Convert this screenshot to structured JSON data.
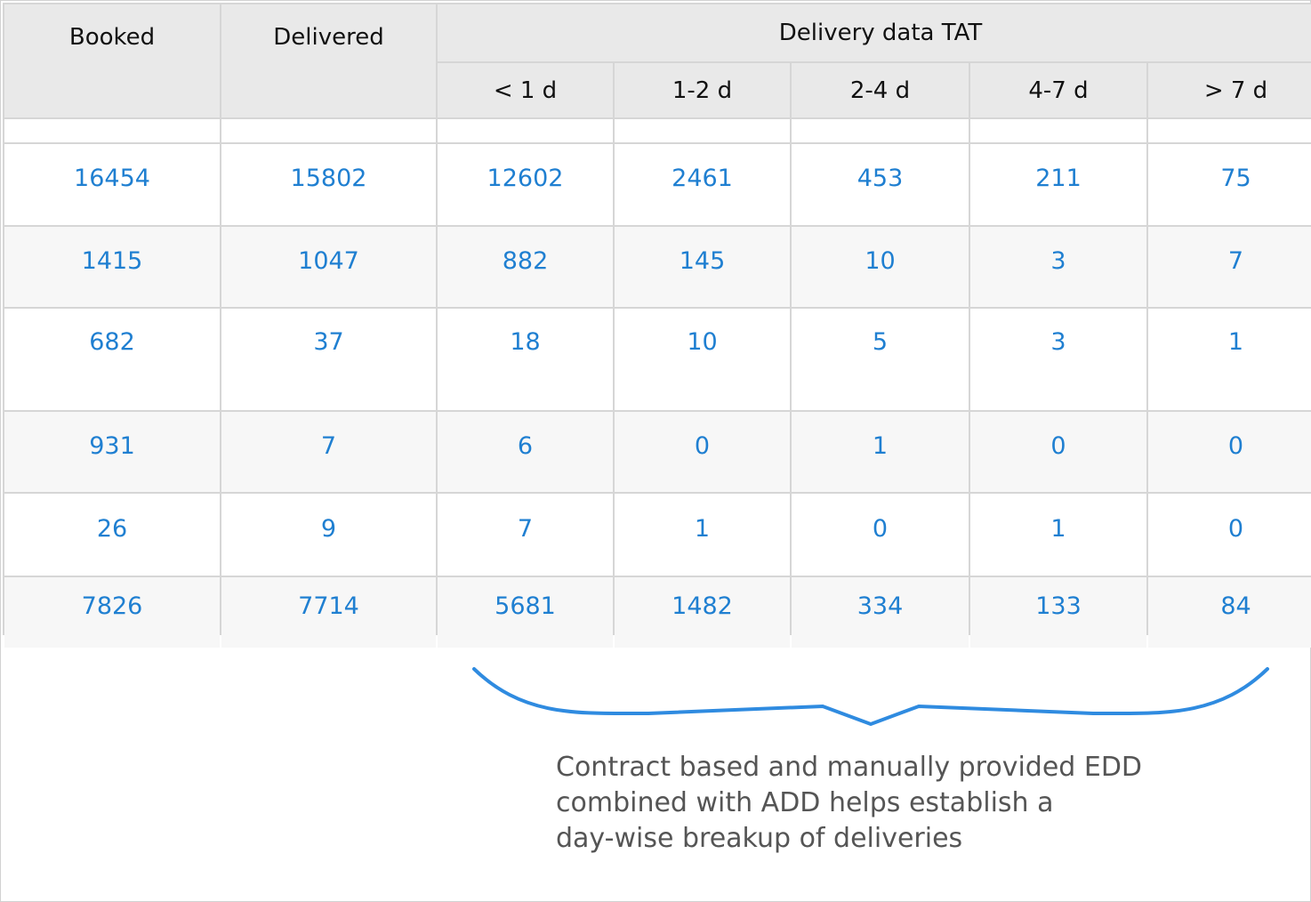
{
  "table": {
    "headers": {
      "booked": "Booked",
      "delivered": "Delivered",
      "group": "Delivery data TAT",
      "buckets": [
        "< 1 d",
        "1-2 d",
        "2-4 d",
        "4-7 d",
        "> 7 d"
      ]
    },
    "rows": [
      [
        "16454",
        "15802",
        "12602",
        "2461",
        "453",
        "211",
        "75"
      ],
      [
        "1415",
        "1047",
        "882",
        "145",
        "10",
        "3",
        "7"
      ],
      [
        "682",
        "37",
        "18",
        "10",
        "5",
        "3",
        "1"
      ],
      [
        "931",
        "7",
        "6",
        "0",
        "1",
        "0",
        "0"
      ],
      [
        "26",
        "9",
        "7",
        "1",
        "0",
        "1",
        "0"
      ],
      [
        "7826",
        "7714",
        "5681",
        "1482",
        "334",
        "133",
        "84"
      ]
    ]
  },
  "annotation": {
    "lines": [
      "Contract based and manually provided EDD",
      "combined with ADD helps establish a",
      "day-wise breakup of deliveries"
    ]
  },
  "colors": {
    "value_text": "#1f7fd1",
    "brace": "#2f8be0",
    "header_bg": "#e9e9e9",
    "grid_line": "#d6d6d6",
    "note_text": "#555555"
  }
}
